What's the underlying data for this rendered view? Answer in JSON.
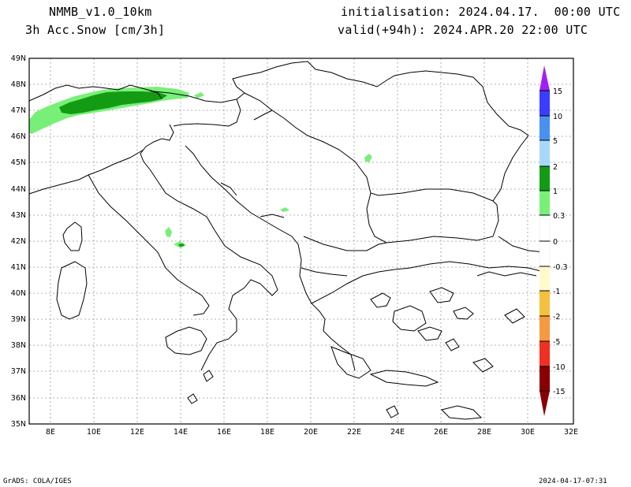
{
  "header": {
    "model": "NMMB_v1.0_10km",
    "variable": "3h Acc.Snow [cm/3h]",
    "init": "initialisation: 2024.04.17.  00:00 UTC",
    "valid": "valid(+94h): 2024.APR.20 22:00 UTC"
  },
  "footer": {
    "left": "GrADS: COLA/IGES",
    "right": "2024-04-17-07:31"
  },
  "axes": {
    "lat_labels": [
      "49N",
      "48N",
      "47N",
      "46N",
      "45N",
      "44N",
      "43N",
      "42N",
      "41N",
      "40N",
      "39N",
      "38N",
      "37N",
      "36N",
      "35N"
    ],
    "lon_labels": [
      "8E",
      "10E",
      "12E",
      "14E",
      "16E",
      "18E",
      "20E",
      "22E",
      "24E",
      "26E",
      "28E",
      "30E",
      "32E"
    ]
  },
  "colorbar": {
    "labels": [
      "15",
      "10",
      "5",
      "2",
      "1",
      "0.3",
      "0",
      "-0.3",
      "-1",
      "-2",
      "-5",
      "-10",
      "-15"
    ],
    "colors": [
      "#a020f0",
      "#3c3cff",
      "#4a90f0",
      "#78b8f0",
      "#a8d8f8",
      "#139c13",
      "#78f078",
      "#ffffff",
      "#ffffff",
      "#fffacc",
      "#fff07a",
      "#f5c040",
      "#f59a40",
      "#f03020",
      "#c80000",
      "#880000"
    ]
  },
  "snow_colors": {
    "light": "#78f078",
    "medium": "#139c13"
  }
}
